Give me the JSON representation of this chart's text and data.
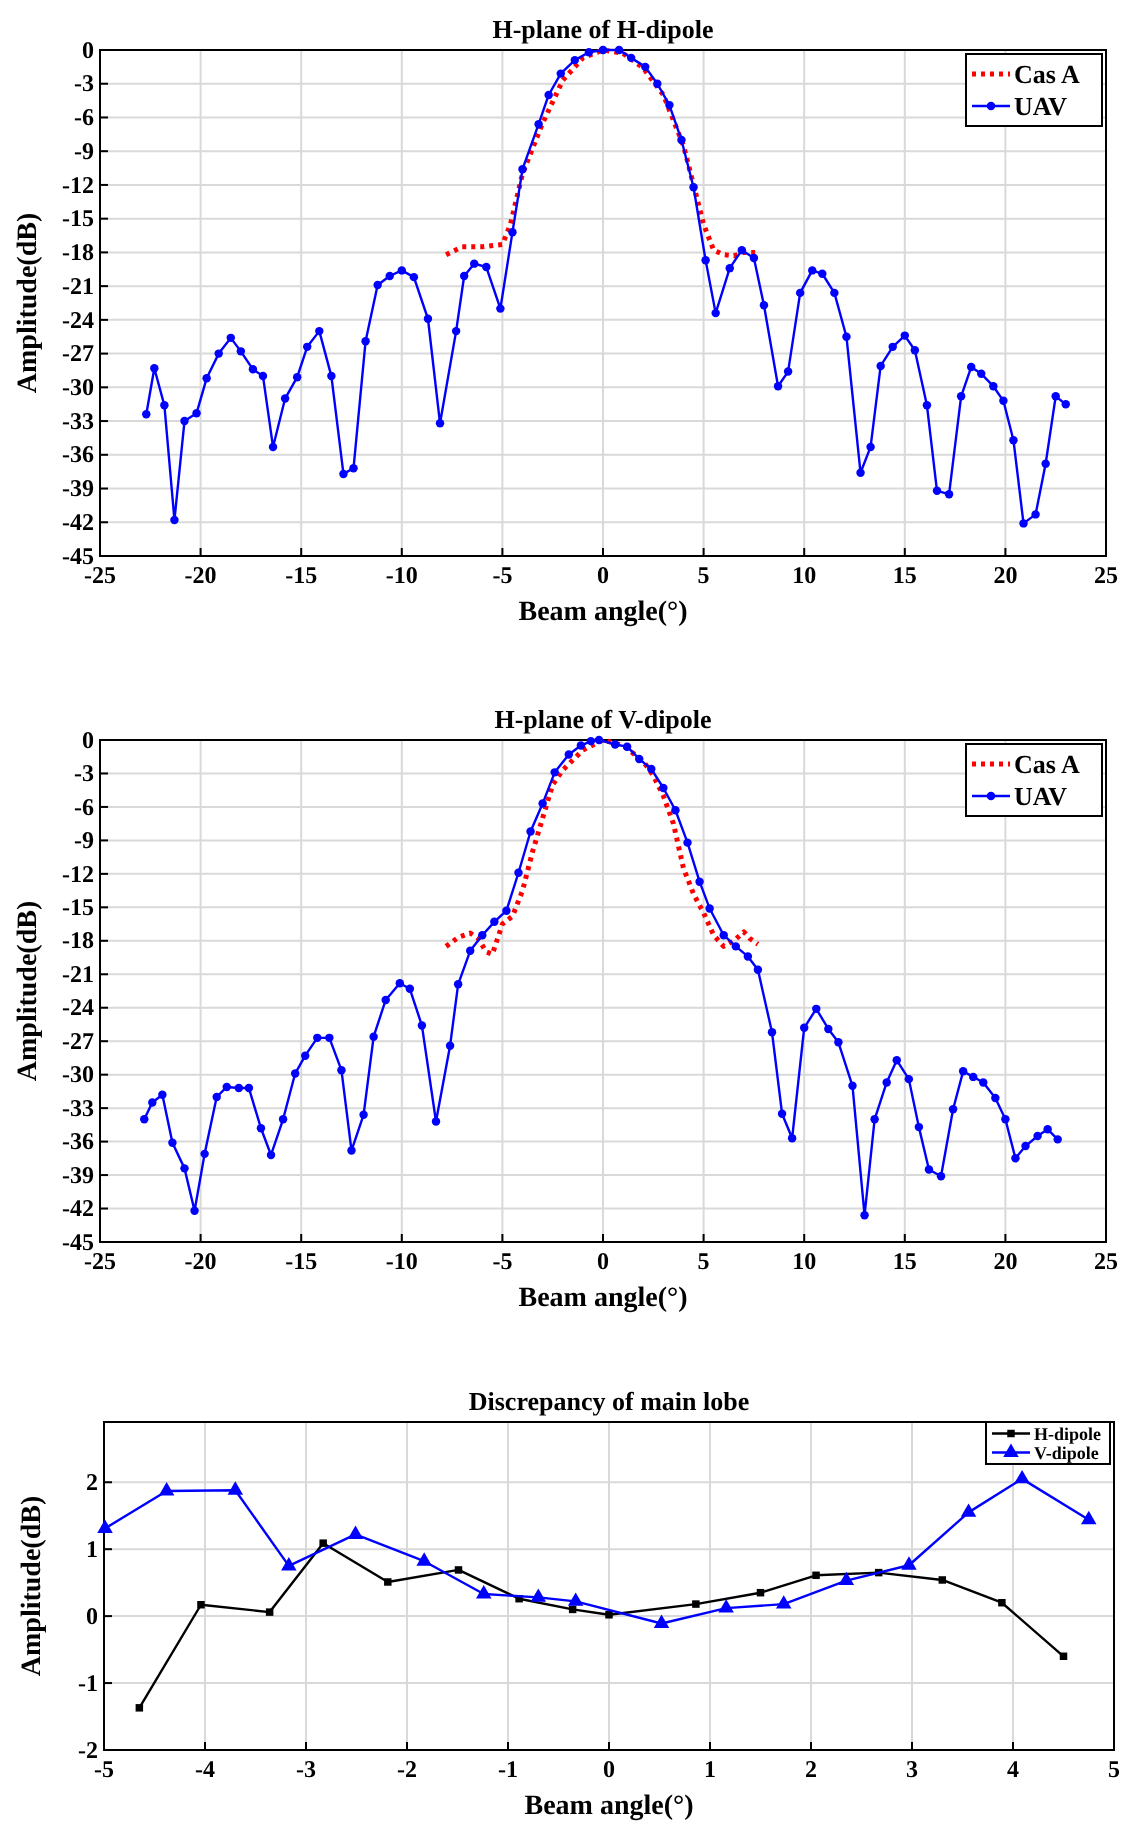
{
  "chart_data": [
    {
      "type": "line",
      "title": "H-plane of H-dipole",
      "xlabel": "Beam angle(°)",
      "ylabel": "Amplitude(dB)",
      "xlim": [
        -25,
        25
      ],
      "xticks": [
        -25,
        -20,
        -15,
        -10,
        -5,
        0,
        5,
        10,
        15,
        20,
        25
      ],
      "ylim": [
        -45,
        0
      ],
      "yticks": [
        0,
        -3,
        -6,
        -9,
        -12,
        -15,
        -18,
        -21,
        -24,
        -27,
        -30,
        -33,
        -36,
        -39,
        -42,
        -45
      ],
      "grid": true,
      "legend": "top right",
      "series": [
        {
          "name": "Cas A",
          "color": "#ff0000",
          "line_style": "dotted",
          "marker": "none",
          "x": [
            -7.8,
            -7,
            -6,
            -5,
            -4.6,
            -4,
            -3,
            -2,
            -1,
            0,
            1,
            2,
            3,
            4,
            4.5,
            5,
            5.5,
            6,
            6.5,
            7,
            7.7
          ],
          "values": [
            -18.2,
            -17.5,
            -17.5,
            -17.3,
            -15.5,
            -11,
            -6.5,
            -2.7,
            -0.7,
            0,
            -0.3,
            -1.6,
            -4,
            -8.5,
            -12,
            -15.5,
            -17.8,
            -18.2,
            -18.3,
            -18,
            -18
          ]
        },
        {
          "name": "UAV",
          "color": "#0000ff",
          "line_style": "solid",
          "marker": "circle",
          "x": [
            -22.7,
            -22.3,
            -21.8,
            -21.3,
            -20.8,
            -20.2,
            -19.7,
            -19.1,
            -18.5,
            -18,
            -17.4,
            -16.9,
            -16.4,
            -15.8,
            -15.2,
            -14.7,
            -14.1,
            -13.5,
            -12.9,
            -12.4,
            -11.8,
            -11.2,
            -10.6,
            -10,
            -9.4,
            -8.7,
            -8.1,
            -7.3,
            -6.9,
            -6.4,
            -5.8,
            -5.1,
            -4.5,
            -4,
            -3.2,
            -2.7,
            -2.1,
            -1.4,
            -0.7,
            0,
            0.8,
            1.4,
            2.1,
            2.7,
            3.3,
            3.9,
            4.5,
            5.1,
            5.6,
            6.3,
            6.9,
            7.5,
            8,
            8.7,
            9.2,
            9.8,
            10.4,
            10.9,
            11.5,
            12.1,
            12.8,
            13.3,
            13.8,
            14.4,
            15,
            15.5,
            16.1,
            16.6,
            17.2,
            17.8,
            18.3,
            18.8,
            19.4,
            19.9,
            20.4,
            20.9,
            21.5,
            22,
            22.5,
            23
          ],
          "values": [
            -32.4,
            -28.3,
            -31.6,
            -41.8,
            -33,
            -32.3,
            -29.2,
            -27,
            -25.6,
            -26.8,
            -28.4,
            -29,
            -35.3,
            -31,
            -29.1,
            -26.4,
            -25,
            -29,
            -37.7,
            -37.2,
            -25.9,
            -20.9,
            -20.1,
            -19.6,
            -20.2,
            -23.9,
            -33.2,
            -25,
            -20.1,
            -19,
            -19.3,
            -23,
            -16.2,
            -10.6,
            -6.6,
            -4,
            -2.1,
            -0.9,
            -0.2,
            0,
            0,
            -0.7,
            -1.5,
            -3,
            -4.9,
            -8,
            -12.2,
            -18.7,
            -23.4,
            -19.4,
            -17.8,
            -18.5,
            -22.7,
            -29.9,
            -28.6,
            -21.6,
            -19.6,
            -19.9,
            -21.6,
            -25.5,
            -37.6,
            -35.3,
            -28.1,
            -26.4,
            -25.4,
            -26.7,
            -31.6,
            -39.2,
            -39.5,
            -30.8,
            -28.2,
            -28.8,
            -29.9,
            -31.2,
            -34.7,
            -42.1,
            -41.3,
            -36.8,
            -30.8,
            -31.5
          ]
        }
      ]
    },
    {
      "type": "line",
      "title": "H-plane of V-dipole",
      "xlabel": "Beam angle(°)",
      "ylabel": "Amplitude(dB)",
      "xlim": [
        -25,
        25
      ],
      "xticks": [
        -25,
        -20,
        -15,
        -10,
        -5,
        0,
        5,
        10,
        15,
        20,
        25
      ],
      "ylim": [
        -45,
        0
      ],
      "yticks": [
        0,
        -3,
        -6,
        -9,
        -12,
        -15,
        -18,
        -21,
        -24,
        -27,
        -30,
        -33,
        -36,
        -39,
        -42,
        -45
      ],
      "grid": true,
      "legend": "top right",
      "series": [
        {
          "name": "Cas A",
          "color": "#ff0000",
          "line_style": "dotted",
          "marker": "none",
          "x": [
            -7.8,
            -7.2,
            -6.6,
            -6.2,
            -5.8,
            -5.5,
            -5,
            -4.5,
            -4,
            -3.5,
            -3,
            -2.5,
            -2,
            -1,
            0,
            1,
            2,
            2.5,
            3,
            3.5,
            4,
            4.5,
            5,
            5.5,
            6,
            6.5,
            7,
            7.3,
            7.7
          ],
          "values": [
            -18.5,
            -17.7,
            -17.3,
            -17.8,
            -19,
            -19.2,
            -16.5,
            -15.8,
            -13.5,
            -10,
            -7,
            -4,
            -2.7,
            -0.9,
            0,
            -0.5,
            -1.9,
            -3.2,
            -5,
            -7.5,
            -11.5,
            -13.8,
            -15.5,
            -17.5,
            -18.5,
            -18,
            -17.2,
            -17.8,
            -18.3
          ]
        },
        {
          "name": "UAV",
          "color": "#0000ff",
          "line_style": "solid",
          "marker": "circle",
          "x": [
            -22.8,
            -22.4,
            -21.9,
            -21.4,
            -20.8,
            -20.3,
            -19.8,
            -19.2,
            -18.7,
            -18.1,
            -17.6,
            -17,
            -16.5,
            -15.9,
            -15.3,
            -14.8,
            -14.2,
            -13.6,
            -13,
            -12.5,
            -11.9,
            -11.4,
            -10.8,
            -10.1,
            -9.6,
            -9,
            -8.3,
            -7.6,
            -7.2,
            -6.6,
            -6,
            -5.4,
            -4.8,
            -4.2,
            -3.6,
            -3,
            -2.4,
            -1.7,
            -1.1,
            -0.6,
            -0.2,
            0.6,
            1.2,
            1.8,
            2.4,
            3,
            3.6,
            4.2,
            4.8,
            5.3,
            6,
            6.6,
            7.2,
            7.7,
            8.4,
            8.9,
            9.4,
            10,
            10.6,
            11.2,
            11.7,
            12.4,
            13,
            13.5,
            14.1,
            14.6,
            15.2,
            15.7,
            16.2,
            16.8,
            17.4,
            17.9,
            18.4,
            18.9,
            19.5,
            20,
            20.5,
            21,
            21.6,
            22.1,
            22.6
          ],
          "values": [
            -34,
            -32.5,
            -31.8,
            -36.1,
            -38.4,
            -42.2,
            -37.1,
            -32,
            -31.1,
            -31.2,
            -31.2,
            -34.8,
            -37.2,
            -34,
            -29.9,
            -28.3,
            -26.7,
            -26.7,
            -29.6,
            -36.8,
            -33.6,
            -26.6,
            -23.3,
            -21.8,
            -22.3,
            -25.6,
            -34.2,
            -27.4,
            -21.9,
            -18.9,
            -17.5,
            -16.3,
            -15.3,
            -11.9,
            -8.2,
            -5.7,
            -2.9,
            -1.3,
            -0.5,
            -0.1,
            0,
            -0.4,
            -0.6,
            -1.7,
            -2.6,
            -4.3,
            -6.3,
            -9.2,
            -12.7,
            -15.1,
            -17.5,
            -18.5,
            -19.4,
            -20.6,
            -26.2,
            -33.5,
            -35.7,
            -25.8,
            -24.1,
            -25.9,
            -27.1,
            -31,
            -42.6,
            -34,
            -30.7,
            -28.7,
            -30.4,
            -34.7,
            -38.5,
            -39.1,
            -33.1,
            -29.7,
            -30.2,
            -30.7,
            -32.1,
            -34,
            -37.5,
            -36.4,
            -35.5,
            -34.9,
            -35.8
          ]
        }
      ]
    },
    {
      "type": "line",
      "title": "Discrepancy of main lobe",
      "xlabel": "Beam angle(°)",
      "ylabel": "Amplitude(dB)",
      "xlim": [
        -5,
        5
      ],
      "xticks": [
        -5,
        -4,
        -3,
        -2,
        -1,
        0,
        1,
        2,
        3,
        4,
        5
      ],
      "ylim": [
        -2,
        2.9
      ],
      "yticks": [
        -2,
        -1,
        0,
        1,
        2
      ],
      "grid": true,
      "legend": "top right",
      "series": [
        {
          "name": "H-dipole",
          "color": "#000000",
          "line_style": "solid",
          "marker": "square",
          "x": [
            -4.65,
            -4.04,
            -3.36,
            -2.83,
            -2.19,
            -1.49,
            -0.89,
            -0.36,
            0,
            0.86,
            1.5,
            2.05,
            2.67,
            3.3,
            3.89,
            4.5
          ],
          "values": [
            -1.37,
            0.17,
            0.06,
            1.09,
            0.51,
            0.69,
            0.26,
            0.1,
            0.02,
            0.18,
            0.35,
            0.61,
            0.65,
            0.54,
            0.2,
            -0.6
          ]
        },
        {
          "name": "V-dipole",
          "color": "#0000ff",
          "line_style": "solid",
          "marker": "triangle",
          "x": [
            -4.99,
            -4.38,
            -3.7,
            -3.17,
            -2.51,
            -1.83,
            -1.24,
            -0.7,
            -0.33,
            0.52,
            1.16,
            1.73,
            2.35,
            2.97,
            3.56,
            4.09,
            4.75
          ],
          "values": [
            1.31,
            1.87,
            1.88,
            0.75,
            1.22,
            0.82,
            0.33,
            0.28,
            0.22,
            -0.11,
            0.12,
            0.18,
            0.53,
            0.76,
            1.55,
            2.05,
            1.44
          ]
        }
      ]
    }
  ]
}
